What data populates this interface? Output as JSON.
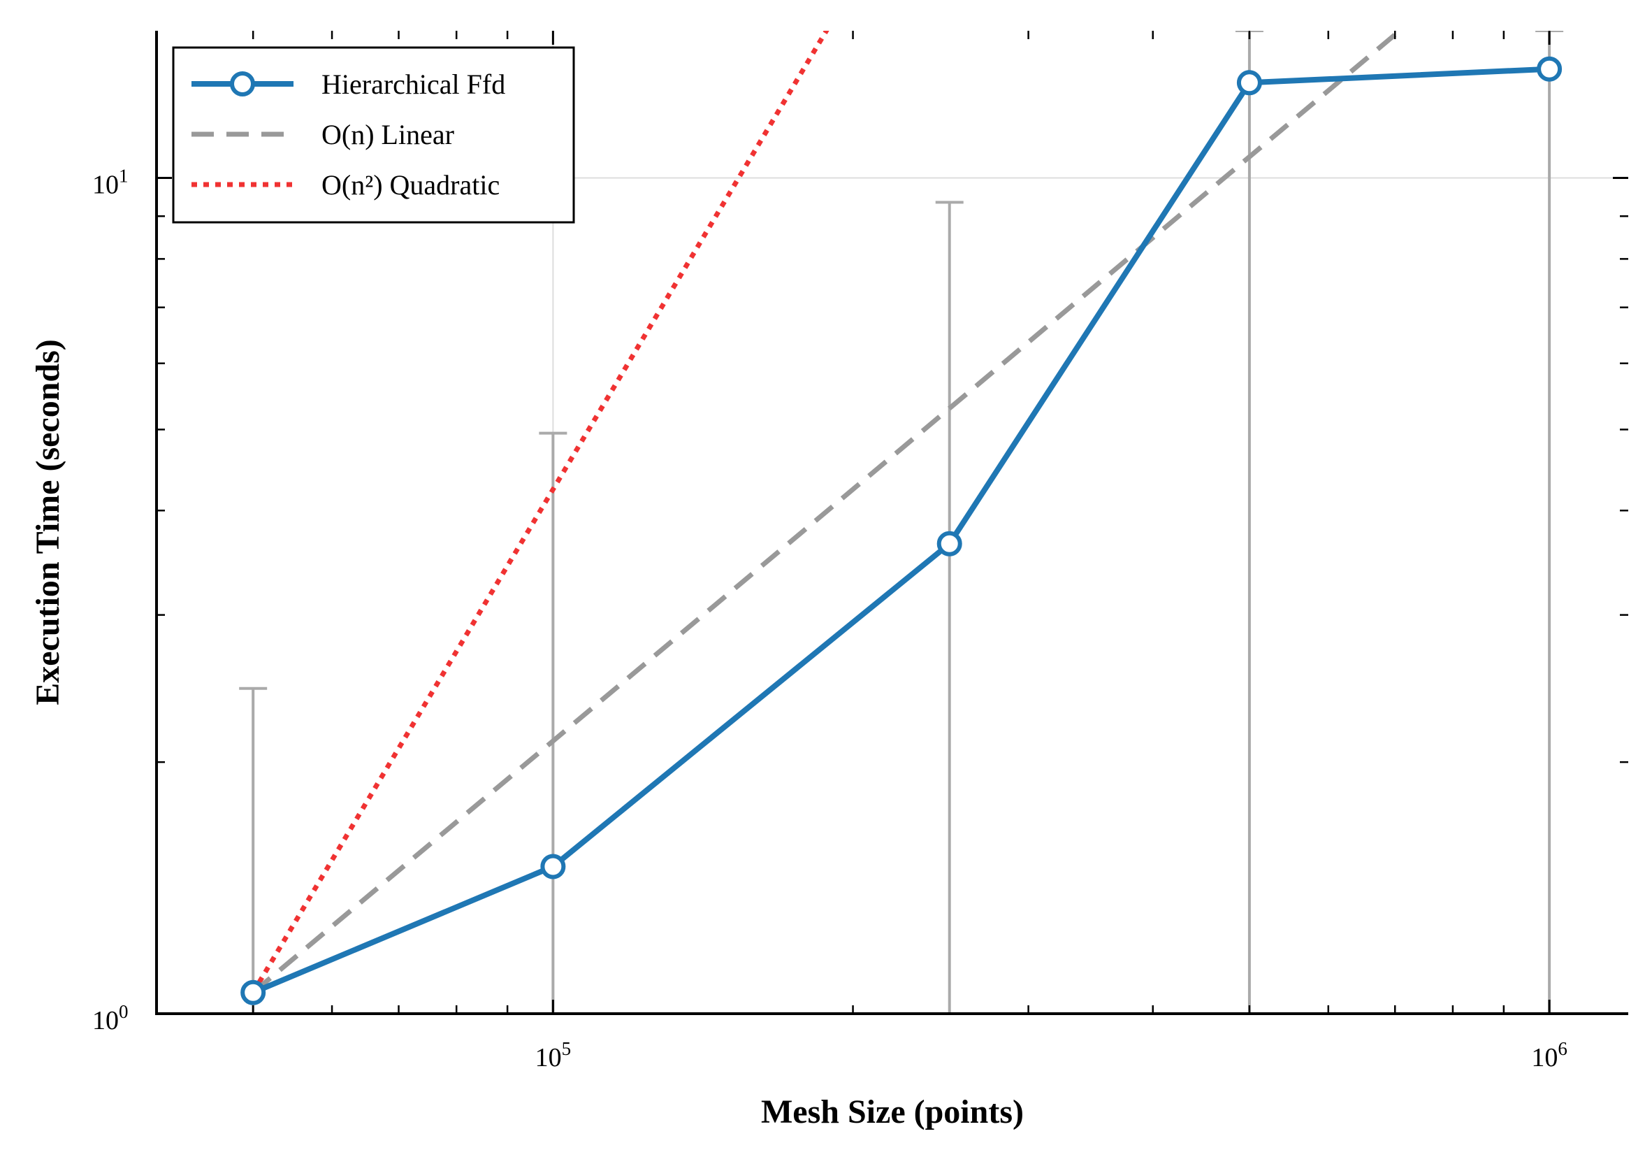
{
  "chart_data": {
    "type": "line",
    "xscale": "log",
    "yscale": "log",
    "xlabel": "Mesh Size (points)",
    "ylabel": "Execution Time (seconds)",
    "xlim": [
      40000,
      1200000
    ],
    "ylim": [
      1.0,
      15.0
    ],
    "x_major_ticks": [
      {
        "value": 100000,
        "base": "10",
        "exp": "5"
      },
      {
        "value": 1000000,
        "base": "10",
        "exp": "6"
      }
    ],
    "y_major_ticks": [
      {
        "value": 1,
        "base": "10",
        "exp": "0"
      },
      {
        "value": 10,
        "base": "10",
        "exp": "1"
      }
    ],
    "grid": true,
    "legend_position": "top-left",
    "series": [
      {
        "name": "Hierarchical Ffd",
        "style": "solid-marker",
        "color": "#1f77b4",
        "x": [
          50000,
          100000,
          250000,
          500000,
          1000000
        ],
        "y": [
          1.06,
          1.5,
          3.65,
          13.0,
          13.5
        ],
        "error_upper": [
          2.45,
          4.95,
          9.35,
          15.0,
          15.0
        ],
        "error_lower": [
          1.0,
          1.0,
          1.0,
          1.0,
          1.0
        ]
      },
      {
        "name": "O(n) Linear",
        "style": "dashed",
        "color": "#999999",
        "x": [
          50000,
          100000,
          250000,
          500000,
          1000000
        ],
        "y": [
          1.06,
          2.12,
          5.3,
          10.6,
          21.2
        ]
      },
      {
        "name": "O(n²) Quadratic",
        "style": "dotted",
        "color": "#f03232",
        "x": [
          50000,
          100000,
          250000
        ],
        "y": [
          1.06,
          4.24,
          26.5
        ]
      }
    ]
  }
}
